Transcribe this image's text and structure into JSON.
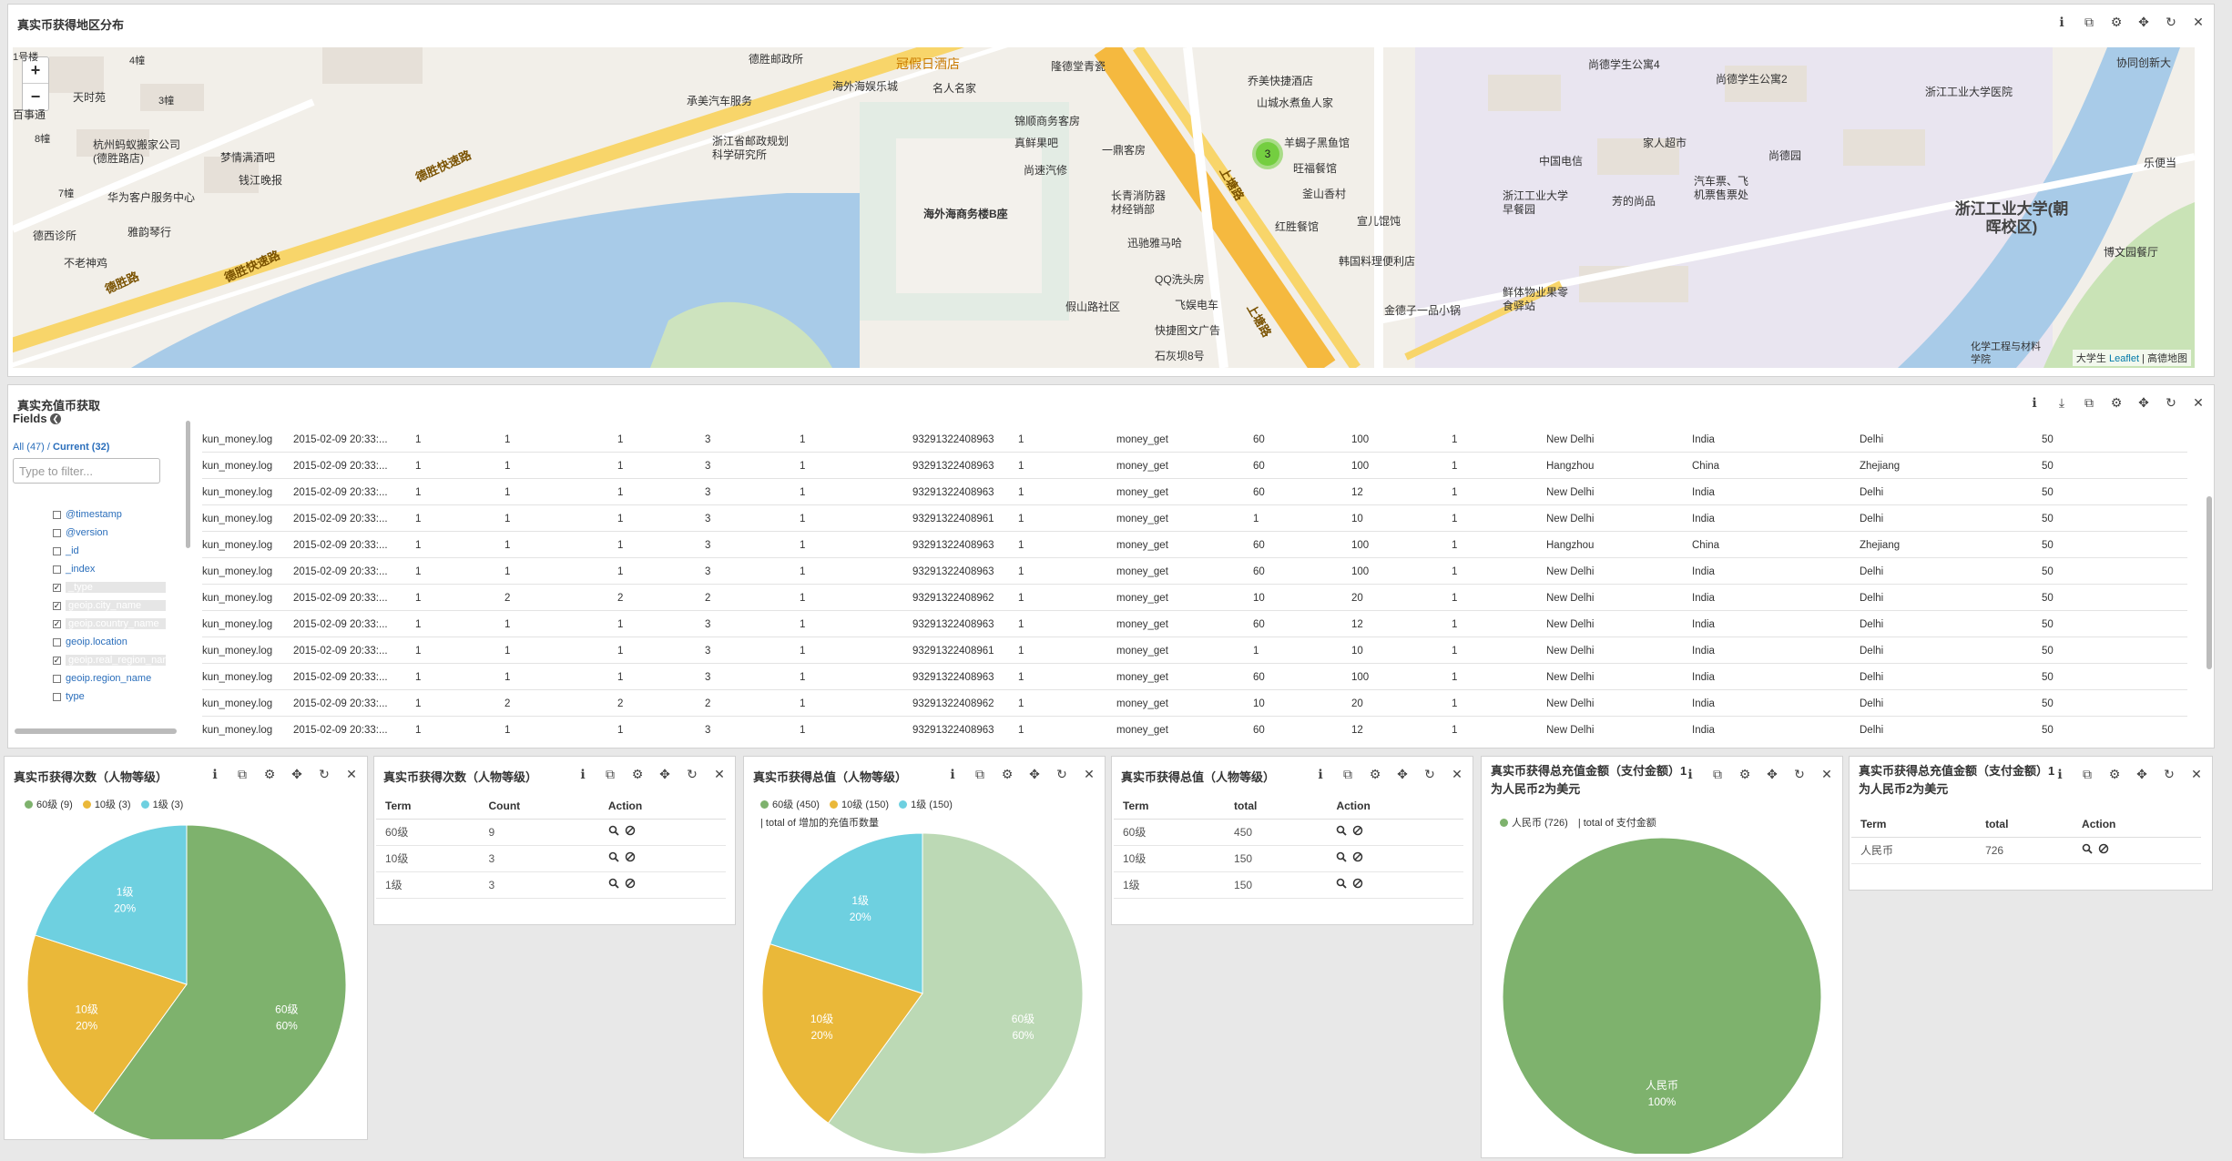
{
  "colors": {
    "green": "#7eb26d",
    "yellow": "#eab839",
    "cyan": "#6ed0e0",
    "light_green": "#bcd9b5"
  },
  "map_panel": {
    "title": "真实币获得地区分布",
    "zoom_in": "+",
    "zoom_out": "−",
    "cluster_count": "3",
    "attribution_prefix": "大学生",
    "attribution_link": "Leaflet",
    "attribution_suffix": "| 高德地图",
    "labels": [
      "1号楼",
      "4幢",
      "天时苑",
      "3幢",
      "百事通",
      "8幢",
      "杭州蚂蚁搬家公司(德胜路店)",
      "梦情满酒吧",
      "钱江晚报",
      "华为客户服务中心",
      "7幢",
      "雅韵琴行",
      "德西诊所",
      "不老神鸡",
      "德胜快速路",
      "德胜快速路",
      "德胜路",
      "德胜邮政所",
      "承美汽车服务",
      "浙江省邮政规划科学研究所",
      "海外海娱乐城",
      "名人名家",
      "冠假日酒店",
      "隆德堂青瓷",
      "锦顺商务客房",
      "真鲜果吧",
      "一鼎客房",
      "尚速汽修",
      "长青消防器材经销部",
      "迅驰雅马哈",
      "QQ洗头房",
      "飞娱电车",
      "快捷图文广告",
      "石灰坝8号",
      "假山路社区",
      "海外海商务楼B座",
      "乔美快捷酒店",
      "山城水煮鱼人家",
      "羊蝎子黑鱼馆",
      "旺福餐馆",
      "釜山香村",
      "宣儿馄饨",
      "红胜餐馆",
      "韩国料理便利店",
      "金德子一品小锅",
      "上塘路",
      "上塘路",
      "尚德学生公寓4",
      "中国电信",
      "家人超市",
      "浙江工业大学早餐园",
      "芳的尚品",
      "汽车票、飞机票售票处",
      "鲜体物业果零食驿站",
      "尚德学生公寓2",
      "尚德园",
      "浙江工业大学医院",
      "浙江工业大学(朝晖校区)",
      "协同创新大",
      "乐便当",
      "博文园餐厅",
      "化学工程与材料学院"
    ]
  },
  "log_panel": {
    "title": "真实充值币获取",
    "fields_title": "Fields",
    "all_label": "All (47)",
    "current_label": "Current (32)",
    "filter_placeholder": "Type to filter...",
    "fields": [
      {
        "name": "@timestamp",
        "checked": false
      },
      {
        "name": "@version",
        "checked": false
      },
      {
        "name": "_id",
        "checked": false
      },
      {
        "name": "_index",
        "checked": false
      },
      {
        "name": "_type",
        "checked": true
      },
      {
        "name": "geoip.city_name",
        "checked": true
      },
      {
        "name": "geoip.country_name",
        "checked": true
      },
      {
        "name": "geoip.location",
        "checked": false
      },
      {
        "name": "geoip.real_region_name",
        "checked": true
      },
      {
        "name": "geoip.region_name",
        "checked": false
      },
      {
        "name": "type",
        "checked": false
      }
    ],
    "rows": [
      [
        "kun_money.log",
        "2015-02-09 20:33:...",
        "1",
        "1",
        "1",
        "3",
        "1",
        "93291322408963",
        "1",
        "money_get",
        "60",
        "100",
        "1",
        "New Delhi",
        "India",
        "Delhi",
        "50"
      ],
      [
        "kun_money.log",
        "2015-02-09 20:33:...",
        "1",
        "1",
        "1",
        "3",
        "1",
        "93291322408963",
        "1",
        "money_get",
        "60",
        "100",
        "1",
        "Hangzhou",
        "China",
        "Zhejiang",
        "50"
      ],
      [
        "kun_money.log",
        "2015-02-09 20:33:...",
        "1",
        "1",
        "1",
        "3",
        "1",
        "93291322408963",
        "1",
        "money_get",
        "60",
        "12",
        "1",
        "New Delhi",
        "India",
        "Delhi",
        "50"
      ],
      [
        "kun_money.log",
        "2015-02-09 20:33:...",
        "1",
        "1",
        "1",
        "3",
        "1",
        "93291322408961",
        "1",
        "money_get",
        "1",
        "10",
        "1",
        "New Delhi",
        "India",
        "Delhi",
        "50"
      ],
      [
        "kun_money.log",
        "2015-02-09 20:33:...",
        "1",
        "1",
        "1",
        "3",
        "1",
        "93291322408963",
        "1",
        "money_get",
        "60",
        "100",
        "1",
        "Hangzhou",
        "China",
        "Zhejiang",
        "50"
      ],
      [
        "kun_money.log",
        "2015-02-09 20:33:...",
        "1",
        "1",
        "1",
        "3",
        "1",
        "93291322408963",
        "1",
        "money_get",
        "60",
        "100",
        "1",
        "New Delhi",
        "India",
        "Delhi",
        "50"
      ],
      [
        "kun_money.log",
        "2015-02-09 20:33:...",
        "1",
        "2",
        "2",
        "2",
        "1",
        "93291322408962",
        "1",
        "money_get",
        "10",
        "20",
        "1",
        "New Delhi",
        "India",
        "Delhi",
        "50"
      ],
      [
        "kun_money.log",
        "2015-02-09 20:33:...",
        "1",
        "1",
        "1",
        "3",
        "1",
        "93291322408963",
        "1",
        "money_get",
        "60",
        "12",
        "1",
        "New Delhi",
        "India",
        "Delhi",
        "50"
      ],
      [
        "kun_money.log",
        "2015-02-09 20:33:...",
        "1",
        "1",
        "1",
        "3",
        "1",
        "93291322408961",
        "1",
        "money_get",
        "1",
        "10",
        "1",
        "New Delhi",
        "India",
        "Delhi",
        "50"
      ],
      [
        "kun_money.log",
        "2015-02-09 20:33:...",
        "1",
        "1",
        "1",
        "3",
        "1",
        "93291322408963",
        "1",
        "money_get",
        "60",
        "100",
        "1",
        "New Delhi",
        "India",
        "Delhi",
        "50"
      ],
      [
        "kun_money.log",
        "2015-02-09 20:33:...",
        "1",
        "2",
        "2",
        "2",
        "1",
        "93291322408962",
        "1",
        "money_get",
        "10",
        "20",
        "1",
        "New Delhi",
        "India",
        "Delhi",
        "50"
      ],
      [
        "kun_money.log",
        "2015-02-09 20:33:...",
        "1",
        "1",
        "1",
        "3",
        "1",
        "93291322408963",
        "1",
        "money_get",
        "60",
        "12",
        "1",
        "New Delhi",
        "India",
        "Delhi",
        "50"
      ]
    ]
  },
  "panel1": {
    "title": "真实币获得次数（人物等级）",
    "legend": [
      {
        "label": "60级 (9)",
        "color": "#7eb26d"
      },
      {
        "label": "10级 (3)",
        "color": "#eab839"
      },
      {
        "label": "1级 (3)",
        "color": "#6ed0e0"
      }
    ]
  },
  "panel2": {
    "title": "真实币获得次数（人物等级）",
    "headers": [
      "Term",
      "Count",
      "Action"
    ],
    "rows": [
      [
        "60级",
        "9"
      ],
      [
        "10级",
        "3"
      ],
      [
        "1级",
        "3"
      ]
    ]
  },
  "panel3": {
    "title": "真实币获得总值（人物等级）",
    "legend": [
      {
        "label": "60级 (450)",
        "color": "#7eb26d"
      },
      {
        "label": "10级 (150)",
        "color": "#eab839"
      },
      {
        "label": "1级 (150)",
        "color": "#6ed0e0"
      }
    ],
    "subtitle": "| total of 增加的充值币数量"
  },
  "panel4": {
    "title": "真实币获得总值（人物等级）",
    "headers": [
      "Term",
      "total",
      "Action"
    ],
    "rows": [
      [
        "60级",
        "450"
      ],
      [
        "10级",
        "150"
      ],
      [
        "1级",
        "150"
      ]
    ]
  },
  "panel5": {
    "title": "真实币获得总充值金额（支付金额）1为人民币2为美元",
    "legend": [
      {
        "label": "人民币 (726)",
        "color": "#7eb26d"
      }
    ],
    "subtitle": "| total of 支付金额"
  },
  "panel6": {
    "title": "真实币获得总充值金额（支付金额）1为人民币2为美元",
    "headers": [
      "Term",
      "total",
      "Action"
    ],
    "rows": [
      [
        "人民币",
        "726"
      ]
    ]
  },
  "chart_data": [
    {
      "type": "pie",
      "categories": [
        "60级",
        "10级",
        "1级"
      ],
      "values": [
        9,
        3,
        3
      ],
      "labels": [
        "60%",
        "20%",
        "20%"
      ],
      "colors": [
        "#7eb26d",
        "#eab839",
        "#6ed0e0"
      ]
    },
    {
      "type": "pie",
      "categories": [
        "60级",
        "10级",
        "1级"
      ],
      "values": [
        450,
        150,
        150
      ],
      "labels": [
        "60%",
        "20%",
        "20%"
      ],
      "colors": [
        "#bcd9b5",
        "#eab839",
        "#6ed0e0"
      ]
    },
    {
      "type": "pie",
      "categories": [
        "人民币"
      ],
      "values": [
        726
      ],
      "labels": [
        "100%"
      ],
      "colors": [
        "#7eb26d"
      ]
    }
  ]
}
